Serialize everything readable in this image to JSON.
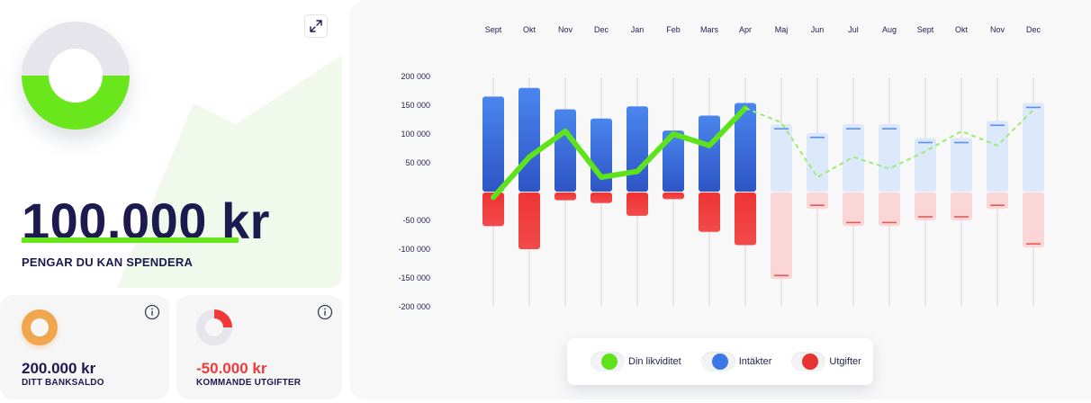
{
  "summary": {
    "amount": "100.000 kr",
    "caption": "PENGAR DU KAN SPENDERA",
    "donut_colors": {
      "top": "#e6e5eb",
      "bottom": "#6ae61c"
    },
    "expand_icon": "expand-icon"
  },
  "cards": {
    "bank": {
      "value": "200.000 kr",
      "label": "DITT BANKSALDO",
      "ring_color": "#f0a64c"
    },
    "upcoming": {
      "value": "-50.000 kr",
      "label": "KOMMANDE UTGIFTER",
      "ring_color": "#f03a3a"
    }
  },
  "legend": {
    "items": [
      {
        "label": "Din likviditet",
        "color": "#5ee31a"
      },
      {
        "label": "Intäkter",
        "color": "#3a78e8"
      },
      {
        "label": "Utgifter",
        "color": "#e83333"
      }
    ]
  },
  "chart_data": {
    "type": "bar",
    "categories": [
      "Sept",
      "Okt",
      "Nov",
      "Dec",
      "Jan",
      "Feb",
      "Mars",
      "Apr",
      "Maj",
      "Jun",
      "Jul",
      "Aug",
      "Sept",
      "Okt",
      "Nov",
      "Dec"
    ],
    "y_ticks": [
      "200 000",
      "150 000",
      "100 000",
      "50 000",
      "-50 000",
      "-100 000",
      "-150 000",
      "-200 000"
    ],
    "ylim": [
      -200000,
      200000
    ],
    "actual_count": 8,
    "series": [
      {
        "name": "Intäkter",
        "values": [
          165000,
          180000,
          143000,
          127000,
          148000,
          106000,
          132000,
          154000,
          117000,
          102000,
          117000,
          117000,
          93000,
          93000,
          123000,
          154000
        ]
      },
      {
        "name": "Utgifter",
        "values": [
          -60000,
          -100000,
          -15000,
          -20000,
          -42000,
          -13000,
          -70000,
          -93000,
          -152000,
          -30000,
          -60000,
          -60000,
          -50000,
          -50000,
          -30000,
          -97000
        ]
      },
      {
        "name": "Din likviditet",
        "values": [
          -10000,
          60000,
          105000,
          25000,
          35000,
          100000,
          80000,
          145000,
          120000,
          25000,
          60000,
          40000,
          70000,
          105000,
          80000,
          142000
        ]
      }
    ],
    "colors": {
      "income": "#3a78e8",
      "expense": "#e83333",
      "liquidity": "#5ee31a",
      "income_forecast": "#dce8fb",
      "expense_forecast": "#fbd6d6"
    },
    "legend_position": "bottom"
  }
}
